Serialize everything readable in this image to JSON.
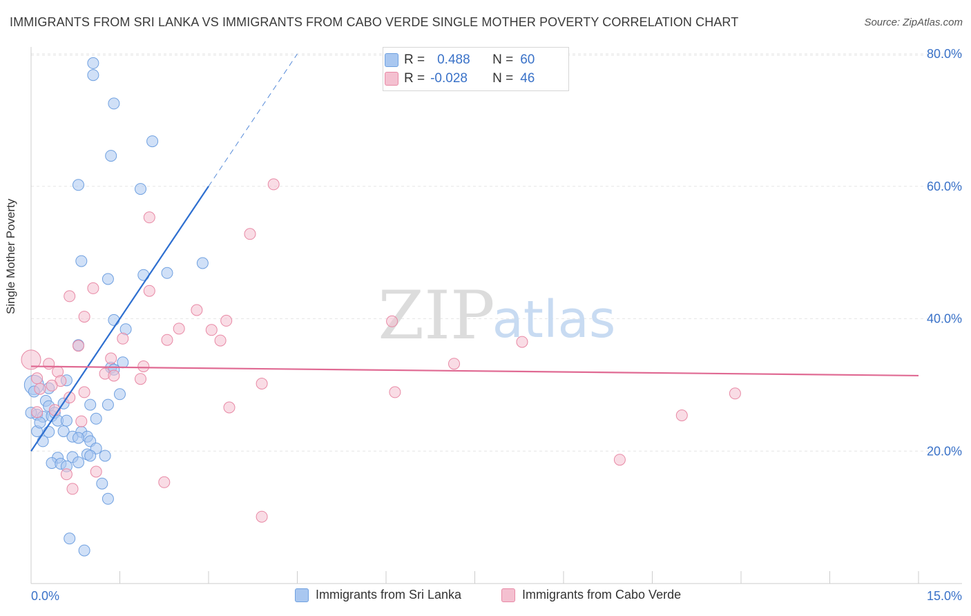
{
  "title": "IMMIGRANTS FROM SRI LANKA VS IMMIGRANTS FROM CABO VERDE SINGLE MOTHER POVERTY CORRELATION CHART",
  "source": "Source: ZipAtlas.com",
  "watermark": {
    "zip": "ZIP",
    "atlas": "atlas"
  },
  "stats": {
    "r_label": "R =",
    "n_label": "N =",
    "rows": [
      {
        "series": "Immigrants from Sri Lanka",
        "r": "0.488",
        "n": "60"
      },
      {
        "series": "Immigrants from Cabo Verde",
        "r": "-0.028",
        "n": "46"
      }
    ]
  },
  "chart_data": {
    "type": "scatter",
    "title": "IMMIGRANTS FROM SRI LANKA VS IMMIGRANTS FROM CABO VERDE SINGLE MOTHER POVERTY CORRELATION CHART",
    "xlabel": "",
    "ylabel": "Single Mother Poverty",
    "xlim": [
      0,
      15
    ],
    "ylim": [
      0,
      82
    ],
    "x_tick_labels": [
      "0.0%",
      "15.0%"
    ],
    "y_ticks": [
      20,
      40,
      60,
      80
    ],
    "y_tick_labels": [
      "20.0%",
      "40.0%",
      "60.0%",
      "80.0%"
    ],
    "grid": true,
    "series": [
      {
        "name": "Immigrants from Sri Lanka",
        "color": "#6fa0e0",
        "fill": "#a9c7f0",
        "trend": {
          "x0": 0.0,
          "y0": 20.0,
          "x1": 3.0,
          "y1": 60.0,
          "dashed_to_x": 4.5,
          "color": "#2e6fd0"
        },
        "points": [
          [
            1.05,
            78.6
          ],
          [
            1.05,
            76.8
          ],
          [
            1.4,
            72.5
          ],
          [
            2.05,
            66.8
          ],
          [
            1.35,
            64.6
          ],
          [
            0.8,
            60.2
          ],
          [
            1.85,
            59.6
          ],
          [
            2.9,
            48.4
          ],
          [
            0.85,
            48.7
          ],
          [
            1.3,
            46.0
          ],
          [
            1.9,
            46.6
          ],
          [
            2.3,
            46.9
          ],
          [
            1.4,
            39.8
          ],
          [
            1.6,
            38.4
          ],
          [
            0.8,
            36.0
          ],
          [
            1.55,
            33.4
          ],
          [
            1.35,
            32.6
          ],
          [
            0.6,
            30.7
          ],
          [
            0.05,
            30.0
          ],
          [
            0.05,
            29.0
          ],
          [
            1.5,
            28.6
          ],
          [
            0.25,
            27.6
          ],
          [
            0.3,
            26.8
          ],
          [
            0.55,
            27.2
          ],
          [
            1.0,
            27.0
          ],
          [
            1.3,
            27.0
          ],
          [
            0.1,
            25.5
          ],
          [
            0.2,
            25.2
          ],
          [
            0.35,
            25.3
          ],
          [
            0.4,
            25.8
          ],
          [
            0.45,
            24.6
          ],
          [
            1.1,
            24.9
          ],
          [
            0.1,
            23.0
          ],
          [
            0.3,
            22.9
          ],
          [
            0.55,
            23.0
          ],
          [
            0.85,
            22.9
          ],
          [
            0.7,
            22.2
          ],
          [
            0.95,
            22.2
          ],
          [
            1.0,
            21.5
          ],
          [
            0.2,
            21.5
          ],
          [
            0.8,
            22.0
          ],
          [
            1.1,
            20.4
          ],
          [
            0.95,
            19.5
          ],
          [
            1.0,
            19.3
          ],
          [
            0.7,
            19.1
          ],
          [
            0.45,
            19.0
          ],
          [
            0.8,
            18.3
          ],
          [
            0.35,
            18.2
          ],
          [
            0.5,
            18.1
          ],
          [
            0.6,
            17.7
          ],
          [
            1.2,
            15.1
          ],
          [
            1.3,
            12.8
          ],
          [
            0.65,
            6.8
          ],
          [
            0.9,
            5.0
          ],
          [
            0.0,
            25.8
          ],
          [
            0.15,
            24.3
          ],
          [
            0.6,
            24.6
          ],
          [
            1.4,
            32.3
          ],
          [
            0.3,
            29.5
          ],
          [
            1.25,
            19.3
          ]
        ]
      },
      {
        "name": "Immigrants from Cabo Verde",
        "color": "#e889a5",
        "fill": "#f4c0d0",
        "trend": {
          "x0": 0.0,
          "y0": 32.8,
          "x1": 15.0,
          "y1": 31.4,
          "color": "#e06a93"
        },
        "points": [
          [
            4.1,
            60.3
          ],
          [
            2.0,
            55.3
          ],
          [
            3.7,
            52.8
          ],
          [
            1.05,
            44.6
          ],
          [
            2.0,
            44.2
          ],
          [
            0.65,
            43.4
          ],
          [
            2.8,
            41.3
          ],
          [
            0.9,
            40.3
          ],
          [
            3.3,
            39.7
          ],
          [
            6.1,
            39.6
          ],
          [
            2.5,
            38.5
          ],
          [
            3.05,
            38.3
          ],
          [
            1.55,
            37.0
          ],
          [
            2.3,
            36.8
          ],
          [
            3.2,
            36.7
          ],
          [
            8.3,
            36.5
          ],
          [
            0.8,
            35.9
          ],
          [
            1.35,
            34.0
          ],
          [
            0.0,
            33.8
          ],
          [
            0.3,
            33.2
          ],
          [
            1.9,
            32.8
          ],
          [
            7.15,
            33.2
          ],
          [
            0.45,
            32.0
          ],
          [
            1.25,
            31.7
          ],
          [
            1.4,
            31.4
          ],
          [
            0.1,
            31.0
          ],
          [
            0.5,
            30.6
          ],
          [
            1.85,
            30.9
          ],
          [
            3.9,
            30.2
          ],
          [
            0.35,
            29.9
          ],
          [
            0.15,
            29.4
          ],
          [
            0.9,
            28.9
          ],
          [
            6.15,
            28.9
          ],
          [
            11.9,
            28.7
          ],
          [
            0.65,
            28.1
          ],
          [
            3.35,
            26.6
          ],
          [
            0.4,
            26.2
          ],
          [
            0.1,
            25.9
          ],
          [
            11.0,
            25.4
          ],
          [
            0.85,
            24.5
          ],
          [
            1.1,
            16.9
          ],
          [
            0.6,
            16.5
          ],
          [
            2.25,
            15.3
          ],
          [
            0.7,
            14.3
          ],
          [
            9.95,
            18.7
          ],
          [
            3.9,
            10.1
          ]
        ]
      }
    ]
  },
  "legend": {
    "items": [
      {
        "label": "Immigrants from Sri Lanka",
        "color": "#a9c7f0",
        "border": "#6fa0e0"
      },
      {
        "label": "Immigrants from Cabo Verde",
        "color": "#f4c0d0",
        "border": "#e889a5"
      }
    ]
  }
}
